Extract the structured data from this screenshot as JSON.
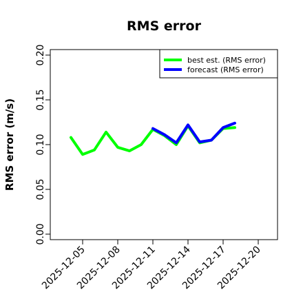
{
  "chart_data": {
    "type": "line",
    "title": "RMS error",
    "xlabel": "",
    "ylabel": "RMS error (m/s)",
    "ylim": [
      0,
      0.2
    ],
    "y_ticks": [
      0.0,
      0.05,
      0.1,
      0.15,
      0.2
    ],
    "y_tick_labels": [
      "0.00",
      "0.05",
      "0.10",
      "0.15",
      "0.20"
    ],
    "x_ticks": [
      "2025-12-05",
      "2025-12-08",
      "2025-12-11",
      "2025-12-14",
      "2025-12-17",
      "2025-12-20"
    ],
    "highlight_tick": "2025-12-11",
    "highlight_color": "#228B22",
    "legend_position": "top-right",
    "grid": false,
    "series": [
      {
        "name": "best est. (RMS error)",
        "color": "#00ff00",
        "points": [
          [
            "2025-12-04",
            0.108
          ],
          [
            "2025-12-05",
            0.089
          ],
          [
            "2025-12-06",
            0.094
          ],
          [
            "2025-12-07",
            0.114
          ],
          [
            "2025-12-08",
            0.097
          ],
          [
            "2025-12-09",
            0.093
          ],
          [
            "2025-12-10",
            0.1
          ],
          [
            "2025-12-11",
            0.117
          ],
          [
            "2025-12-12",
            0.11
          ],
          [
            "2025-12-13",
            0.1
          ],
          [
            "2025-12-14",
            0.121
          ],
          [
            "2025-12-15",
            0.102
          ],
          [
            "2025-12-16",
            0.105
          ],
          [
            "2025-12-17",
            0.118
          ],
          [
            "2025-12-18",
            0.119
          ]
        ]
      },
      {
        "name": "forecast (RMS error)",
        "color": "#0000ff",
        "points": [
          [
            "2025-12-11",
            0.118
          ],
          [
            "2025-12-12",
            0.111
          ],
          [
            "2025-12-13",
            0.102
          ],
          [
            "2025-12-14",
            0.122
          ],
          [
            "2025-12-15",
            0.103
          ],
          [
            "2025-12-16",
            0.105
          ],
          [
            "2025-12-17",
            0.119
          ],
          [
            "2025-12-18",
            0.124
          ]
        ]
      }
    ]
  }
}
